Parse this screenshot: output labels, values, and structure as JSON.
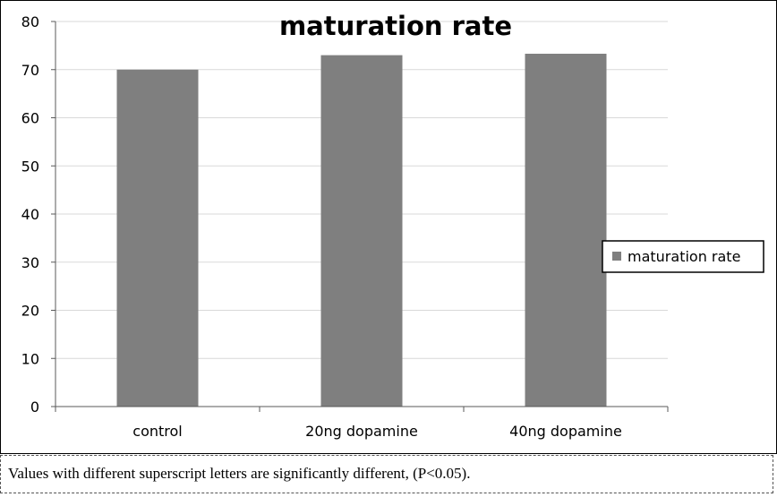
{
  "chart_data": {
    "type": "bar",
    "title": "maturation rate",
    "categories": [
      "control",
      "20ng dopamine",
      "40ng dopamine"
    ],
    "series": [
      {
        "name": "maturation rate",
        "values": [
          70,
          73,
          73.3
        ],
        "color": "#7f7f7f"
      }
    ],
    "xlabel": "",
    "ylabel": "",
    "ylim": [
      0,
      80
    ],
    "yticks": [
      0,
      10,
      20,
      30,
      40,
      50,
      60,
      70,
      80
    ],
    "grid": true,
    "legend_position": "right"
  },
  "footnote": "Values with different superscript letters are significantly different, (P<0.05)."
}
